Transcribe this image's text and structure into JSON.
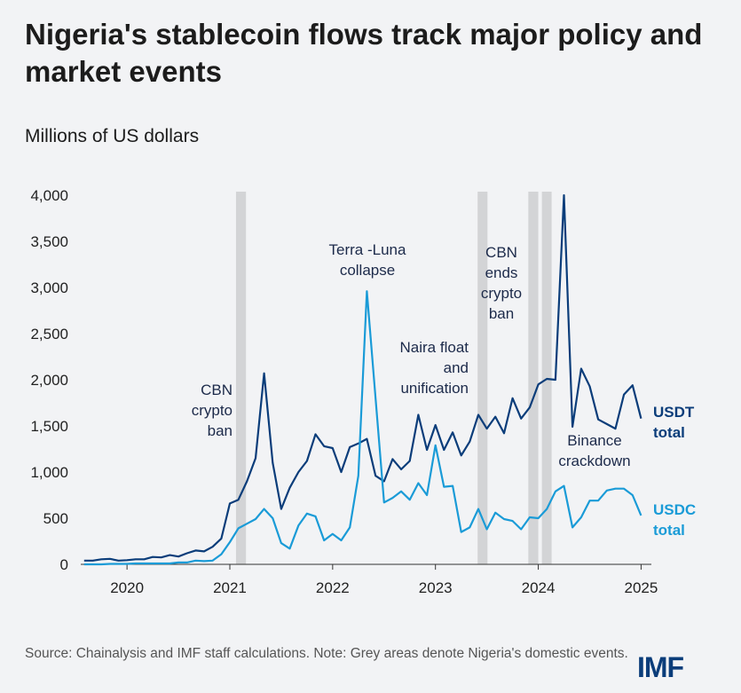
{
  "title": "Nigeria's stablecoin flows track major policy and market events",
  "subtitle": "Millions of US dollars",
  "footer": {
    "source": "Source: Chainalysis and IMF staff calculations. Note: Grey areas denote Nigeria's domestic events.",
    "logo": "IMF"
  },
  "chart_data": {
    "type": "line",
    "x": [
      2019.583,
      2019.667,
      2019.75,
      2019.833,
      2019.917,
      2020,
      2020.083,
      2020.167,
      2020.25,
      2020.333,
      2020.417,
      2020.5,
      2020.583,
      2020.667,
      2020.75,
      2020.833,
      2020.917,
      2021,
      2021.083,
      2021.167,
      2021.25,
      2021.333,
      2021.417,
      2021.5,
      2021.583,
      2021.667,
      2021.75,
      2021.833,
      2021.917,
      2022,
      2022.083,
      2022.167,
      2022.25,
      2022.333,
      2022.417,
      2022.5,
      2022.583,
      2022.667,
      2022.75,
      2022.833,
      2022.917,
      2023,
      2023.083,
      2023.167,
      2023.25,
      2023.333,
      2023.417,
      2023.5,
      2023.583,
      2023.667,
      2023.75,
      2023.833,
      2023.917,
      2024,
      2024.083,
      2024.167,
      2024.25,
      2024.333,
      2024.417,
      2024.5,
      2024.583,
      2024.667,
      2024.75,
      2024.833,
      2024.917,
      2025
    ],
    "series": [
      {
        "name": "USDT\ntotal",
        "color": "#0b3d7a",
        "values": [
          40,
          40,
          55,
          60,
          40,
          45,
          55,
          55,
          80,
          75,
          100,
          85,
          120,
          150,
          140,
          190,
          280,
          660,
          700,
          900,
          1150,
          2070,
          1100,
          600,
          830,
          1000,
          1120,
          1410,
          1280,
          1260,
          1000,
          1270,
          1310,
          1360,
          960,
          900,
          1140,
          1030,
          1120,
          1620,
          1240,
          1510,
          1240,
          1430,
          1180,
          1330,
          1620,
          1470,
          1600,
          1420,
          1800,
          1580,
          1700,
          1950,
          2010,
          2000,
          4000,
          1490,
          2120,
          1930,
          1570,
          1520,
          1470,
          1840,
          1940,
          1580
        ]
      },
      {
        "name": "USDC\ntotal",
        "color": "#1a9bd7",
        "values": [
          0,
          0,
          0,
          5,
          5,
          5,
          10,
          10,
          10,
          10,
          10,
          20,
          20,
          40,
          35,
          40,
          110,
          240,
          390,
          440,
          490,
          600,
          500,
          230,
          170,
          420,
          550,
          520,
          260,
          330,
          260,
          400,
          960,
          2960,
          1800,
          670,
          720,
          790,
          700,
          880,
          750,
          1290,
          840,
          850,
          350,
          400,
          600,
          380,
          560,
          490,
          470,
          380,
          510,
          500,
          600,
          790,
          850,
          400,
          510,
          690,
          690,
          800,
          820,
          820,
          750,
          530
        ]
      }
    ],
    "xlim": [
      2019.55,
      2025.1
    ],
    "xticks": [
      2020,
      2021,
      2022,
      2023,
      2024,
      2025
    ],
    "ylim": [
      0,
      4000
    ],
    "yticks": [
      0,
      {
        "value": 500,
        "label": "500"
      },
      {
        "value": 1000,
        "label": "1,000"
      },
      {
        "value": 1500,
        "label": "1,500"
      },
      {
        "value": 2000,
        "label": "2,000"
      },
      {
        "value": 2500,
        "label": "2,500"
      },
      {
        "value": 3000,
        "label": "3,000"
      },
      {
        "value": 3500,
        "label": "3,500"
      },
      {
        "value": 4000,
        "label": "4,000"
      }
    ],
    "grid": false,
    "shaded_regions": [
      [
        2021.06,
        2021.157
      ],
      [
        2023.41,
        2023.506
      ],
      [
        2023.903,
        2024.0
      ],
      [
        2024.035,
        2024.13
      ]
    ],
    "annotations": [
      "CBN\ncrypto\nban",
      "Terra -Luna\ncollapse",
      "Naira float\nand\nunification",
      "CBN\nends\ncrypto\nban",
      "Binance\ncrackdown"
    ]
  }
}
